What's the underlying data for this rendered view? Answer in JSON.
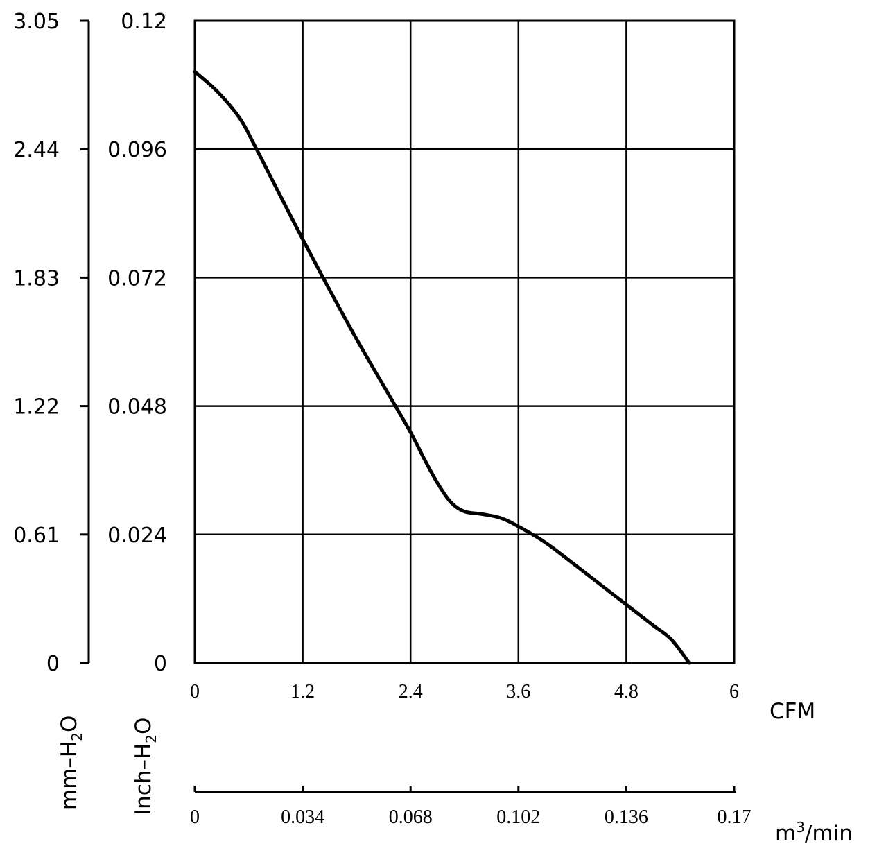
{
  "chart_data": {
    "type": "line",
    "title": "",
    "grid": true,
    "plot_area": {
      "x_range": [
        0,
        6
      ],
      "y_range": [
        0,
        0.12
      ],
      "x_ticks": [
        "0",
        "1.2",
        "2.4",
        "3.6",
        "4.8",
        "6"
      ],
      "y_ticks_inch": [
        "0",
        "0.024",
        "0.048",
        "0.072",
        "0.096",
        "0.12"
      ]
    },
    "left_axis": {
      "label_main": "mm",
      "label_dash": "–",
      "label_h": "H",
      "label_sub": "2",
      "label_o": "O",
      "ticks": [
        "0",
        "0.61",
        "1.22",
        "1.83",
        "2.44",
        "3.05"
      ]
    },
    "inch_axis": {
      "label_main": "Inch",
      "label_dash": "–",
      "label_h": "H",
      "label_sub": "2",
      "label_o": "O",
      "ticks": [
        "0",
        "0.024",
        "0.048",
        "0.072",
        "0.096",
        "0.12"
      ]
    },
    "x_axis": {
      "unit": "CFM",
      "ticks": [
        "0",
        "1.2",
        "2.4",
        "3.6",
        "4.8",
        "6"
      ]
    },
    "x_axis_metric": {
      "unit_base": "m",
      "unit_sup": "3",
      "unit_rest": "/min",
      "ticks": [
        "0",
        "0.034",
        "0.068",
        "0.102",
        "0.136",
        "0.17"
      ]
    },
    "series": [
      {
        "x": [
          0,
          0.25,
          0.5,
          0.65,
          0.8,
          1.0,
          1.2,
          1.5,
          1.8,
          2.1,
          2.4,
          2.55,
          2.7,
          2.85,
          3.0,
          3.2,
          3.4,
          3.6,
          3.9,
          4.2,
          4.5,
          4.8,
          5.1,
          5.3,
          5.5
        ],
        "y": [
          0.1105,
          0.1068,
          0.1018,
          0.0972,
          0.0923,
          0.0857,
          0.0792,
          0.0697,
          0.0605,
          0.0518,
          0.0431,
          0.0382,
          0.0336,
          0.03,
          0.0283,
          0.0278,
          0.0271,
          0.0255,
          0.0225,
          0.0187,
          0.0148,
          0.0109,
          0.007,
          0.0044,
          0.0
        ]
      }
    ]
  }
}
